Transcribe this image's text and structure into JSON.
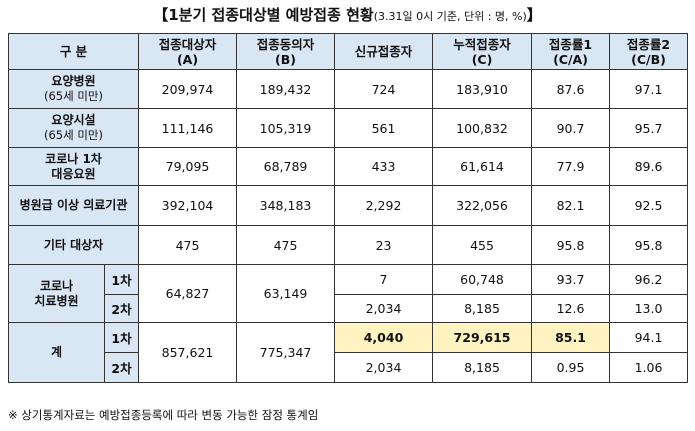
{
  "title": "【1분기 접종대상별 예방접종 현황",
  "title_note": "(3.31일 0시 기준, 단위 : 명, %)",
  "title_close": "】",
  "headers": {
    "category": "구 분",
    "c1": "접종대상자",
    "c1_sub": "(A)",
    "c2": "접종동의자",
    "c2_sub": "(B)",
    "c3": "신규접종자",
    "c4": "누적접종자",
    "c4_sub": "(C)",
    "c5": "접종률1",
    "c5_sub": "(C/A)",
    "c6": "접종률2",
    "c6_sub": "(C/B)"
  },
  "rows": [
    {
      "label": "요양병원",
      "sublabel": "(65세 미만)",
      "values": [
        "209,974",
        "189,432",
        "724",
        "183,910",
        "87.6",
        "97.1"
      ]
    },
    {
      "label": "요양시설",
      "sublabel": "(65세 미만)",
      "values": [
        "111,146",
        "105,319",
        "561",
        "100,832",
        "90.7",
        "95.7"
      ]
    },
    {
      "label": "코로나 1차",
      "sublabel": "대응요원",
      "values": [
        "79,095",
        "68,789",
        "433",
        "61,614",
        "77.9",
        "89.6"
      ]
    },
    {
      "label": "병원급 이상 의료기관",
      "values": [
        "392,104",
        "348,183",
        "2,292",
        "322,056",
        "82.1",
        "92.5"
      ]
    },
    {
      "label": "기타 대상자",
      "values": [
        "475",
        "475",
        "23",
        "455",
        "95.8",
        "95.8"
      ]
    }
  ],
  "covid_hospital": {
    "label": "코로나",
    "label2": "치료병원",
    "target": "64,827",
    "consent": "63,149",
    "dose1": {
      "label": "1차",
      "values": [
        "7",
        "60,748",
        "93.7",
        "96.2"
      ]
    },
    "dose2": {
      "label": "2차",
      "values": [
        "2,034",
        "8,185",
        "12.6",
        "13.0"
      ]
    }
  },
  "total": {
    "label": "계",
    "target": "857,621",
    "consent": "775,347",
    "dose1": {
      "label": "1차",
      "values": [
        "4,040",
        "729,615",
        "85.1",
        "94.1"
      ]
    },
    "dose2": {
      "label": "2차",
      "values": [
        "2,034",
        "8,185",
        "0.95",
        "1.06"
      ]
    }
  },
  "note": "※ 상기통계자료는 예방접종등록에 따라 변동 가능한 잠정 통계임",
  "colors": {
    "header_bg": "#d9e6f4",
    "highlight_bg": "#fff3c2"
  }
}
